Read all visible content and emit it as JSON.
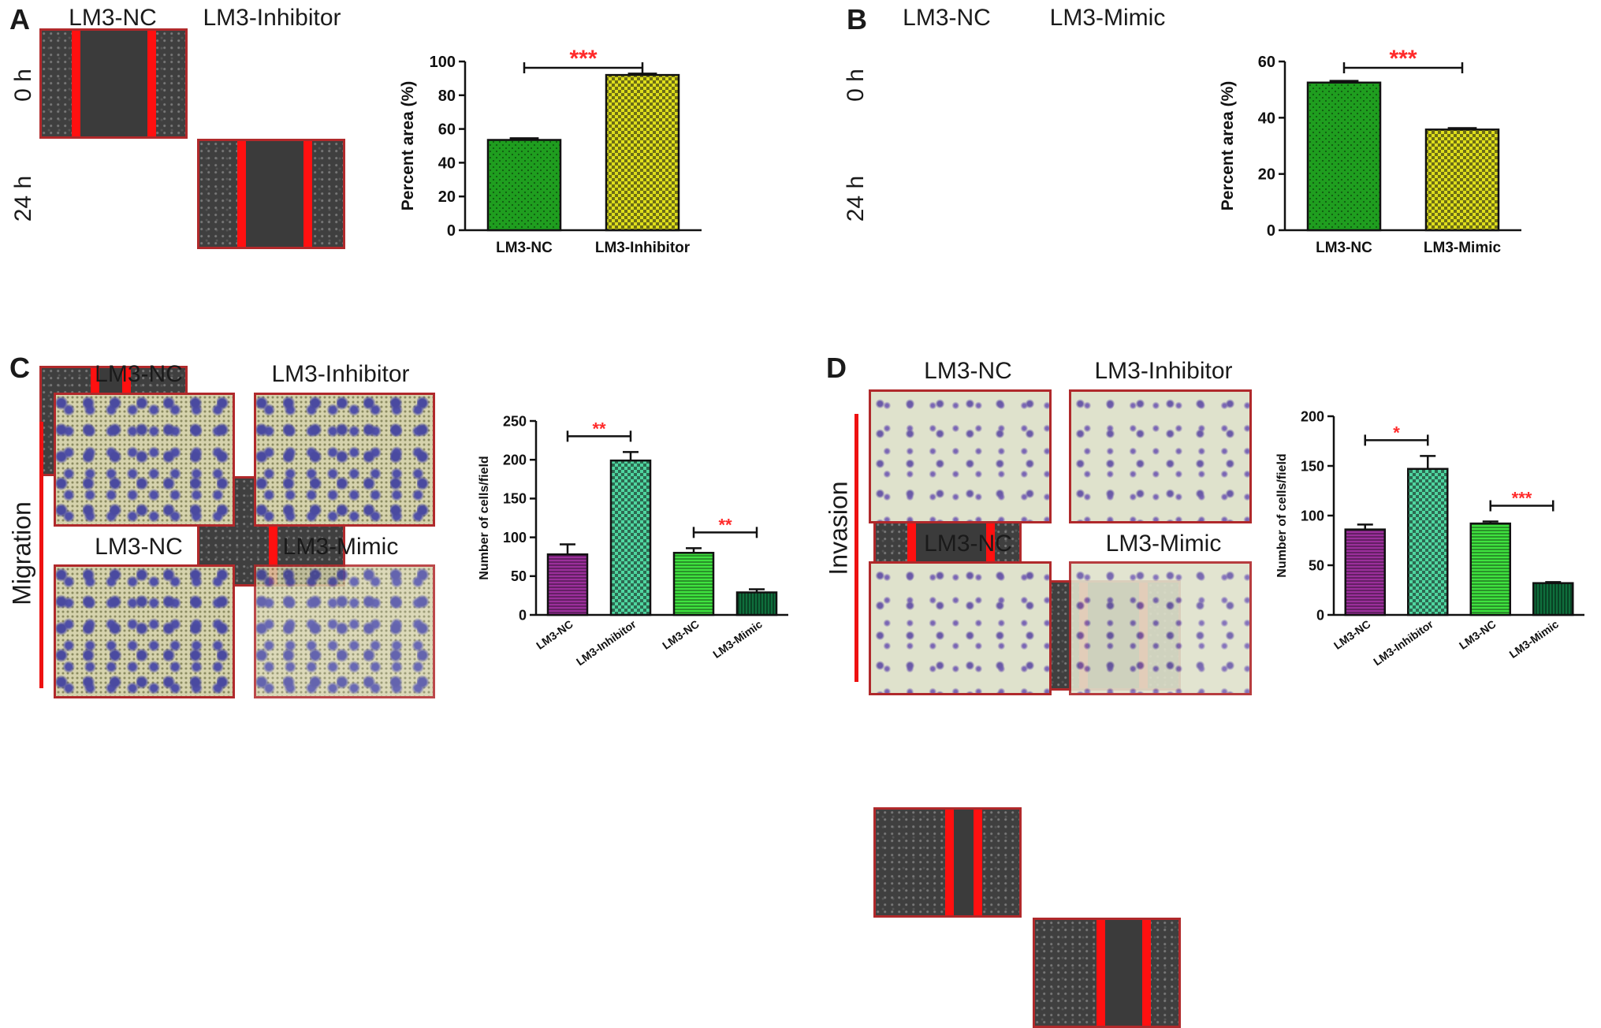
{
  "panels": {
    "A": {
      "letter": "A",
      "col_labels": [
        "LM3-NC",
        "LM3-Inhibitor"
      ],
      "row_labels": [
        "0 h",
        "24 h"
      ]
    },
    "B": {
      "letter": "B",
      "col_labels": [
        "LM3-NC",
        "LM3-Mimic"
      ],
      "row_labels": [
        "0 h",
        "24 h"
      ]
    },
    "C": {
      "letter": "C",
      "col_labels_top": [
        "LM3-NC",
        "LM3-Inhibitor"
      ],
      "col_labels_bottom": [
        "LM3-NC",
        "LM3-Mimic"
      ],
      "side_label": "Migration"
    },
    "D": {
      "letter": "D",
      "col_labels_top": [
        "LM3-NC",
        "LM3-Inhibitor"
      ],
      "col_labels_bottom": [
        "LM3-NC",
        "LM3-Mimic"
      ],
      "side_label": "Invasion"
    }
  },
  "chart_data": [
    {
      "id": "A",
      "type": "bar",
      "categories": [
        "LM3-NC",
        "LM3-Inhibitor"
      ],
      "values": [
        53.5,
        92
      ],
      "errors": [
        1,
        0.8
      ],
      "ylabel": "Percent  area (%)",
      "ylim": [
        0,
        100
      ],
      "yticks": [
        0,
        20,
        40,
        60,
        80,
        100
      ],
      "bar_colors": [
        "#1f9e1f",
        "#dede1c"
      ],
      "patterns": [
        "dots",
        "checker"
      ],
      "significance": [
        {
          "from": 0,
          "to": 1,
          "label": "***"
        }
      ],
      "significance_color": "#ff2a2a"
    },
    {
      "id": "B",
      "type": "bar",
      "categories": [
        "LM3-NC",
        "LM3-Mimic"
      ],
      "values": [
        52.5,
        35.8
      ],
      "errors": [
        0.6,
        0.5
      ],
      "ylabel": "Percent  area (%)",
      "ylim": [
        0,
        60
      ],
      "yticks": [
        0,
        20,
        40,
        60
      ],
      "bar_colors": [
        "#1f9e1f",
        "#dede1c"
      ],
      "patterns": [
        "dots",
        "checker"
      ],
      "significance": [
        {
          "from": 0,
          "to": 1,
          "label": "***"
        }
      ],
      "significance_color": "#ff2a2a"
    },
    {
      "id": "C",
      "type": "bar",
      "categories": [
        "LM3-NC",
        "LM3-Inhibitor",
        "LM3-NC",
        "LM3-Mimic"
      ],
      "values": [
        78,
        199,
        80,
        29
      ],
      "errors": [
        13,
        11,
        6,
        4
      ],
      "ylabel": "Number of cells/field",
      "ylim": [
        0,
        250
      ],
      "yticks": [
        0,
        50,
        100,
        150,
        200,
        250
      ],
      "bar_colors": [
        "#9b2f9b",
        "#4fd6a0",
        "#3fe23f",
        "#0f6e3c"
      ],
      "patterns": [
        "hlines",
        "checker",
        "hlines",
        "vlines"
      ],
      "significance": [
        {
          "from": 0,
          "to": 1,
          "label": "**"
        },
        {
          "from": 2,
          "to": 3,
          "label": "**"
        }
      ],
      "significance_color": "#ff2a2a"
    },
    {
      "id": "D",
      "type": "bar",
      "categories": [
        "LM3-NC",
        "LM3-Inhibitor",
        "LM3-NC",
        "LM3-Mimic"
      ],
      "values": [
        86,
        147,
        92,
        32
      ],
      "errors": [
        5,
        13,
        2,
        1
      ],
      "ylabel": "Number of cells/field",
      "ylim": [
        0,
        200
      ],
      "yticks": [
        0,
        50,
        100,
        150,
        200
      ],
      "bar_colors": [
        "#9b2f9b",
        "#4fd6a0",
        "#3fe23f",
        "#0f6e3c"
      ],
      "patterns": [
        "hlines",
        "checker",
        "hlines",
        "vlines"
      ],
      "significance": [
        {
          "from": 0,
          "to": 1,
          "label": "*"
        },
        {
          "from": 2,
          "to": 3,
          "label": "***"
        }
      ],
      "significance_color": "#ff2a2a"
    }
  ]
}
